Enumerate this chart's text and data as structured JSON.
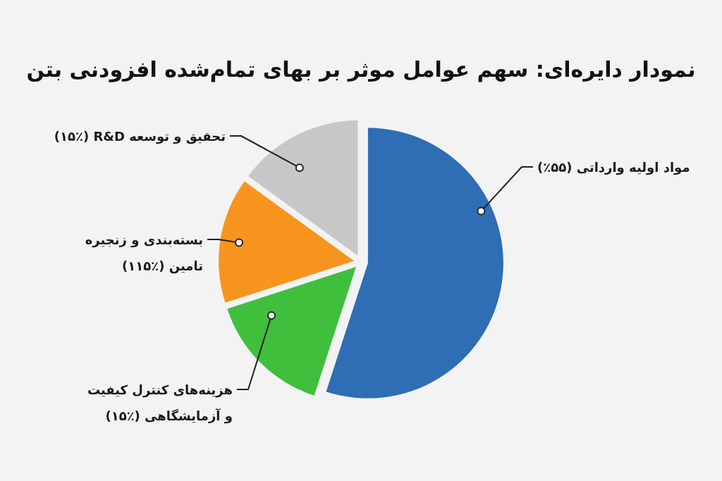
{
  "chart_data": {
    "type": "pie",
    "title": "نمودار دایره‌ای: سهم عوامل موثر بر بهای تمام‌شده افزودنی بتن",
    "categories": [
      "مواد اولیه وارداتی (۵۵٪)",
      "هزینه‌های کنترل کیفیت و آزمایشگاهی (٪۱۵)",
      "بسته‌بندی و زنجیره تامین (٪۱۱۵)",
      "تحقیق و توسعه R&D (٪۱۵)"
    ],
    "values": [
      55,
      15,
      15,
      15
    ],
    "colors": [
      "#2f6db5",
      "#3fbf3c",
      "#f7941d",
      "#c7c7c7"
    ]
  }
}
